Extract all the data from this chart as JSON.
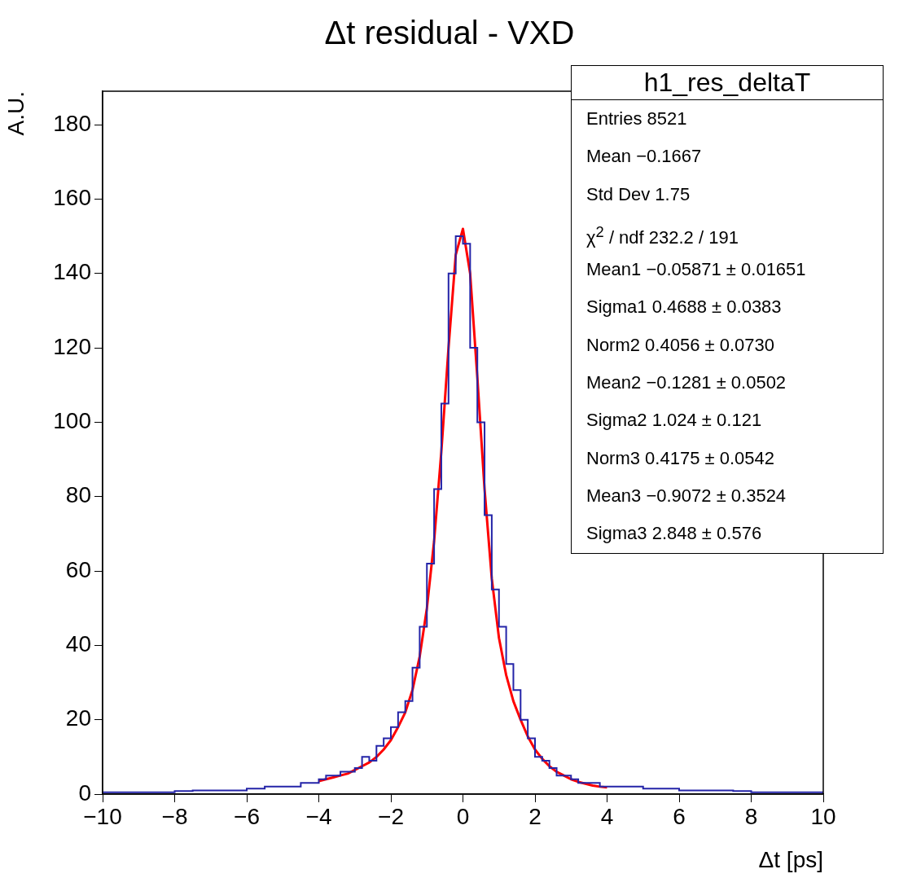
{
  "chart_data": {
    "type": "histogram",
    "title": "Δt residual - VXD",
    "xlabel": "Δt [ps]",
    "ylabel": "A.U.",
    "bins": [
      -10,
      -9.5,
      -9,
      -8.5,
      -8,
      -7.5,
      -7,
      -6.5,
      -6,
      -5.5,
      -5,
      -4.5,
      -4,
      -3.8,
      -3.6,
      -3.4,
      -3.2,
      -3,
      -2.8,
      -2.6,
      -2.4,
      -2.2,
      -2,
      -1.8,
      -1.6,
      -1.4,
      -1.2,
      -1,
      -0.8,
      -0.6,
      -0.4,
      -0.2,
      0,
      0.2,
      0.4,
      0.6,
      0.8,
      1,
      1.2,
      1.4,
      1.6,
      1.8,
      2,
      2.2,
      2.4,
      2.6,
      2.8,
      3,
      3.2,
      3.4,
      3.6,
      3.8,
      4,
      4.5,
      5,
      5.5,
      6,
      6.5,
      7,
      7.5,
      8,
      8.5,
      9,
      9.5,
      10
    ],
    "series": [
      {
        "type": "histogram",
        "color": "#2424a8",
        "values": [
          0.5,
          0.5,
          0.5,
          0.5,
          0.8,
          1,
          1,
          1,
          1.5,
          2,
          2,
          3,
          4,
          5,
          5,
          6,
          6,
          7,
          10,
          9,
          13,
          15,
          18,
          22,
          25,
          34,
          45,
          62,
          82,
          105,
          140,
          150,
          148,
          120,
          100,
          75,
          55,
          45,
          35,
          28,
          20,
          15,
          10,
          9,
          7,
          5,
          5,
          4,
          3,
          3,
          3,
          2,
          2,
          2,
          1.5,
          1.5,
          1,
          1,
          1,
          0.8,
          0.5,
          0.5,
          0.5,
          0.5
        ]
      },
      {
        "type": "line",
        "color": "#ff0000",
        "x": [
          -4,
          -3.8,
          -3.6,
          -3.4,
          -3.2,
          -3,
          -2.8,
          -2.6,
          -2.4,
          -2.2,
          -2,
          -1.8,
          -1.6,
          -1.4,
          -1.2,
          -1,
          -0.8,
          -0.6,
          -0.4,
          -0.2,
          0,
          0.2,
          0.4,
          0.6,
          0.8,
          1,
          1.2,
          1.4,
          1.6,
          1.8,
          2,
          2.2,
          2.4,
          2.6,
          2.8,
          3,
          3.2,
          3.4,
          3.6,
          3.8,
          4
        ],
        "values": [
          3.5,
          4,
          4.5,
          5,
          5.5,
          6.5,
          7.5,
          8.5,
          10,
          12,
          14.5,
          18,
          22,
          28,
          37,
          50,
          68,
          92,
          120,
          145,
          152,
          140,
          112,
          82,
          58,
          42,
          32,
          25,
          20,
          15.5,
          12,
          9.5,
          7.5,
          6,
          5,
          4,
          3.3,
          2.8,
          2.3,
          2,
          1.8
        ]
      }
    ],
    "xlim": [
      -10,
      10
    ],
    "xticks": [
      {
        "value": -10,
        "label": "−10"
      },
      {
        "value": -8,
        "label": "−8"
      },
      {
        "value": -6,
        "label": "−6"
      },
      {
        "value": -4,
        "label": "−4"
      },
      {
        "value": -2,
        "label": "−2"
      },
      0,
      2,
      4,
      6,
      8,
      10
    ],
    "ylim": [
      0,
      189
    ],
    "yticks": [
      0,
      20,
      40,
      60,
      80,
      100,
      120,
      140,
      160,
      180
    ],
    "annotations": [
      "h1_res_deltaT",
      "Entries 8521",
      "Mean −0.1667",
      "Std Dev 1.75",
      "χ$^{2}$ / ndf 232.2 / 191",
      "Mean1 −0.05871 ± 0.01651",
      "Sigma1 0.4688 ± 0.0383",
      "Norm2 0.4056 ± 0.0730",
      "Mean2 −0.1281 ± 0.0502",
      "Sigma2 1.024 ± 0.121",
      "Norm3 0.4175 ± 0.0542",
      "Mean3 −0.9072 ± 0.3524",
      "Sigma3 2.848 ± 0.576"
    ]
  }
}
